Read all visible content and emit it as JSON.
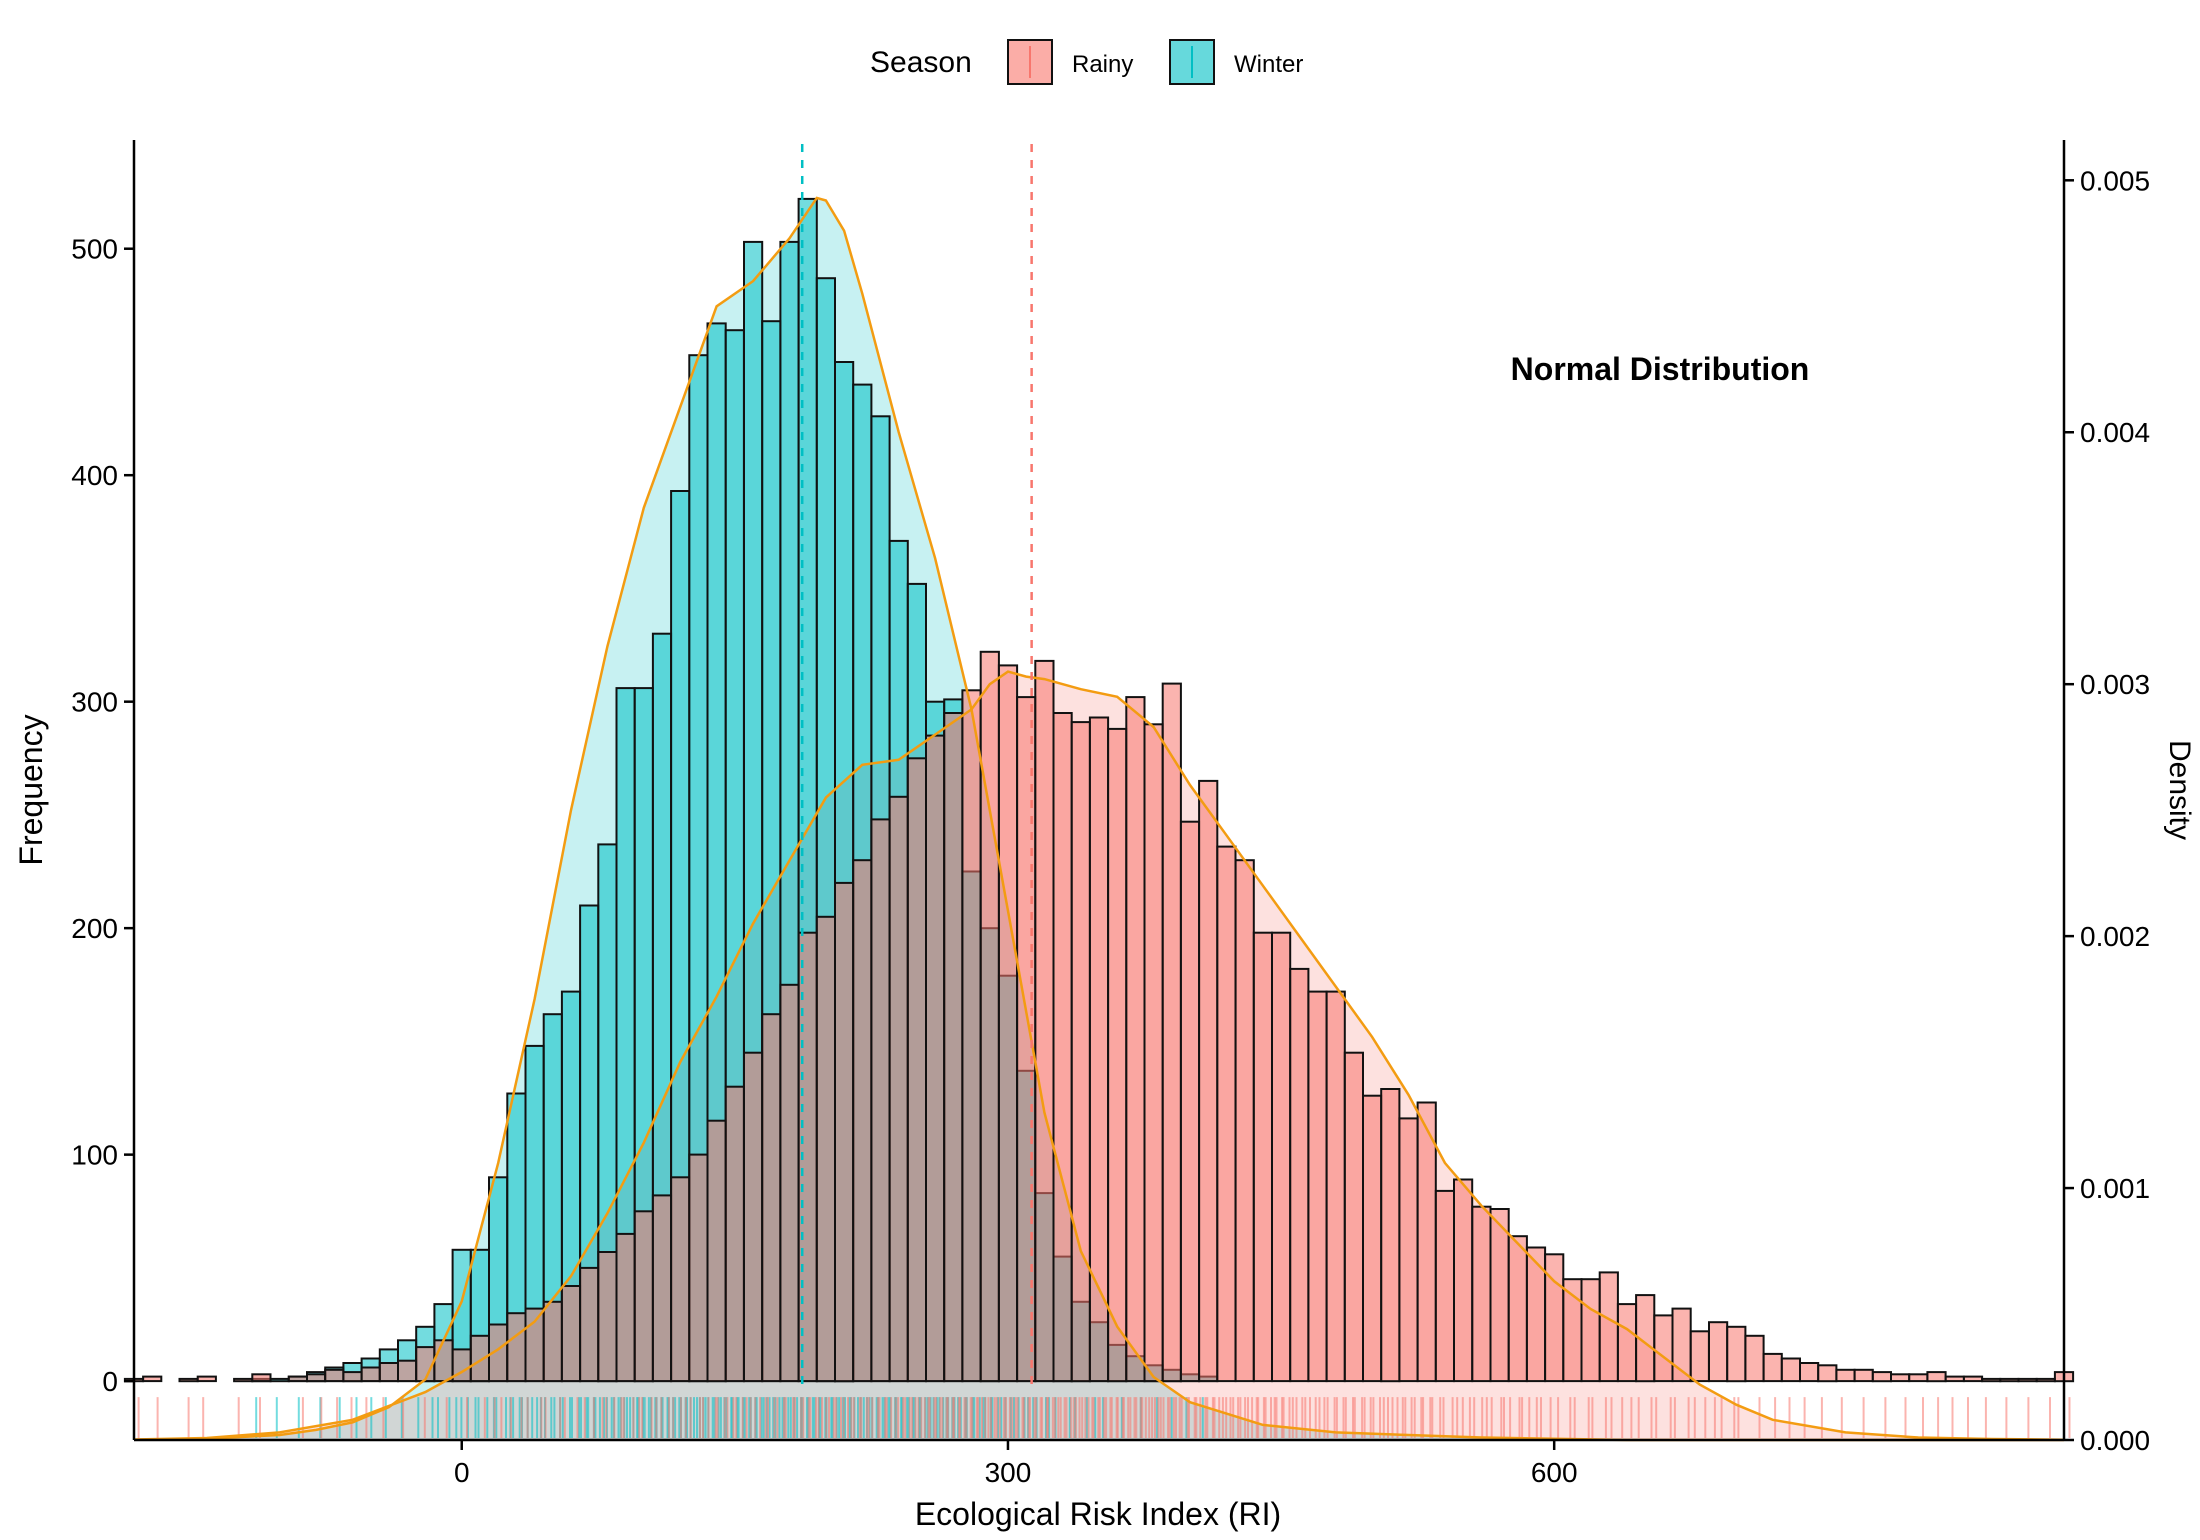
{
  "chart_data": {
    "type": "histogram",
    "title": "",
    "annotation": "Normal Distribution",
    "xlabel": "Ecological Risk Index (RI)",
    "ylabel": "Frequency",
    "y2label": "Density",
    "xlim": [
      -180,
      880
    ],
    "ylim": [
      -26,
      548
    ],
    "y2lim": [
      0,
      0.00516
    ],
    "x_ticks": [
      0,
      300,
      600
    ],
    "y_ticks": [
      0,
      100,
      200,
      300,
      400,
      500
    ],
    "y2_ticks": [
      0.0,
      0.001,
      0.002,
      0.003,
      0.004,
      0.005
    ],
    "y2_tick_labels": [
      "0.000",
      "0.001",
      "0.002",
      "0.003",
      "0.004",
      "0.005"
    ],
    "grid": false,
    "legend": {
      "position": "top",
      "title": "Season",
      "entries": [
        "Rainy",
        "Winter"
      ]
    },
    "bin_start": -185,
    "bin_width": 10,
    "colors": {
      "Rainy": "#F8766D",
      "Winter": "#00BFC4",
      "density": "#F39C12",
      "bar_outline": "#111111"
    },
    "series": [
      {
        "name": "Winter",
        "mean": 187,
        "counts": [
          0,
          0,
          0,
          0,
          0,
          0,
          0,
          1,
          1,
          2,
          4,
          6,
          8,
          10,
          14,
          18,
          24,
          34,
          58,
          58,
          90,
          127,
          148,
          162,
          172,
          210,
          237,
          306,
          306,
          330,
          393,
          453,
          467,
          464,
          503,
          468,
          503,
          522,
          487,
          450,
          440,
          426,
          371,
          352,
          300,
          301,
          225,
          200,
          179,
          137,
          83,
          55,
          35,
          26,
          16,
          11,
          7,
          5,
          3,
          2,
          0,
          0,
          0,
          0,
          0,
          0,
          0,
          0,
          0,
          0,
          0,
          0,
          0,
          0,
          0,
          0,
          0,
          0,
          0,
          0,
          0,
          0,
          0,
          0,
          0,
          0,
          0,
          0,
          0,
          0,
          0,
          0,
          0,
          0,
          0,
          0,
          0,
          0,
          0,
          0,
          0,
          0,
          0,
          0,
          0,
          0,
          0
        ]
      },
      {
        "name": "Rainy",
        "mean": 313,
        "counts": [
          1,
          2,
          0,
          1,
          2,
          0,
          1,
          3,
          0,
          2,
          3,
          5,
          4,
          6,
          8,
          9,
          15,
          18,
          14,
          20,
          25,
          30,
          32,
          35,
          42,
          50,
          57,
          65,
          75,
          82,
          90,
          100,
          115,
          130,
          145,
          162,
          175,
          198,
          205,
          220,
          230,
          248,
          258,
          275,
          285,
          295,
          305,
          322,
          316,
          302,
          318,
          295,
          291,
          293,
          288,
          302,
          290,
          308,
          247,
          265,
          236,
          230,
          198,
          198,
          182,
          172,
          172,
          145,
          126,
          129,
          116,
          123,
          84,
          89,
          77,
          76,
          64,
          59,
          56,
          45,
          45,
          48,
          34,
          38,
          29,
          32,
          22,
          26,
          24,
          20,
          12,
          10,
          8,
          7,
          5,
          5,
          4,
          3,
          3,
          4,
          2,
          2,
          1,
          1,
          1,
          1,
          4
        ]
      }
    ],
    "density": [
      {
        "series": "Winter",
        "x": [
          -180,
          -140,
          -100,
          -80,
          -60,
          -40,
          -20,
          0,
          20,
          40,
          60,
          80,
          100,
          120,
          140,
          160,
          180,
          195,
          200,
          210,
          220,
          240,
          260,
          280,
          300,
          320,
          340,
          360,
          380,
          400,
          440,
          480,
          520,
          560,
          600,
          640,
          680,
          720,
          760,
          800,
          840,
          880
        ],
        "y": [
          1e-06,
          5e-06,
          2e-05,
          4e-05,
          7e-05,
          0.00013,
          0.00024,
          0.00055,
          0.0011,
          0.00175,
          0.0025,
          0.00315,
          0.0037,
          0.0041,
          0.0045,
          0.0046,
          0.00477,
          0.00493,
          0.00492,
          0.0048,
          0.00455,
          0.004,
          0.0035,
          0.0029,
          0.0021,
          0.0013,
          0.00075,
          0.00045,
          0.00025,
          0.00015,
          6e-05,
          3e-05,
          2e-05,
          1e-05,
          5e-06,
          0,
          0,
          0,
          0,
          0,
          0,
          0
        ]
      },
      {
        "series": "Rainy",
        "x": [
          -180,
          -140,
          -100,
          -60,
          -20,
          0,
          20,
          40,
          60,
          80,
          100,
          120,
          140,
          160,
          180,
          200,
          220,
          240,
          260,
          280,
          290,
          300,
          310,
          320,
          340,
          360,
          380,
          400,
          420,
          440,
          460,
          480,
          500,
          520,
          540,
          560,
          580,
          600,
          620,
          640,
          660,
          680,
          700,
          720,
          760,
          800,
          840,
          880
        ],
        "y": [
          2e-06,
          8e-06,
          3e-05,
          8e-05,
          0.00019,
          0.00027,
          0.00036,
          0.00047,
          0.00065,
          0.0009,
          0.00118,
          0.0015,
          0.00176,
          0.00205,
          0.0023,
          0.00255,
          0.00268,
          0.0027,
          0.0028,
          0.0029,
          0.003,
          0.00305,
          0.00303,
          0.00302,
          0.00298,
          0.00295,
          0.00283,
          0.0026,
          0.0024,
          0.0022,
          0.002,
          0.0018,
          0.0016,
          0.00137,
          0.0011,
          0.00093,
          0.00078,
          0.00063,
          0.00052,
          0.00044,
          0.00033,
          0.00022,
          0.00014,
          8e-05,
          3e-05,
          1e-05,
          4e-06,
          1e-06
        ]
      }
    ],
    "rug_note": "rug marks below baseline for each series"
  }
}
